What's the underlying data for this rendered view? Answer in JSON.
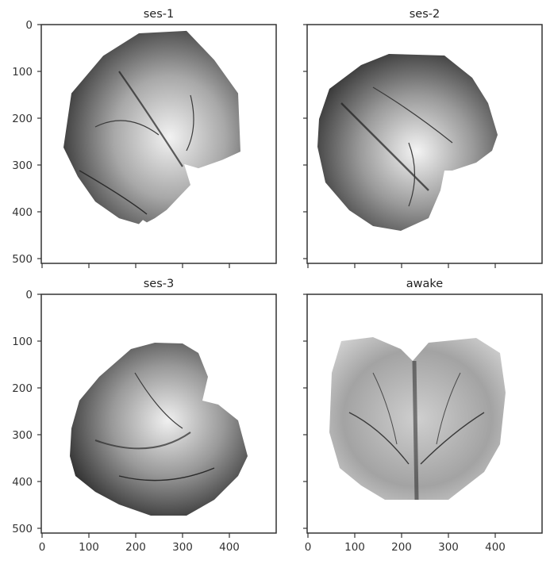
{
  "panels": [
    {
      "title": "ses-1",
      "show_y_tick_labels": true,
      "show_x_tick_labels": false,
      "image_tone": "dark"
    },
    {
      "title": "ses-2",
      "show_y_tick_labels": false,
      "show_x_tick_labels": false,
      "image_tone": "dark"
    },
    {
      "title": "ses-3",
      "show_y_tick_labels": true,
      "show_x_tick_labels": true,
      "image_tone": "dark"
    },
    {
      "title": "awake",
      "show_y_tick_labels": false,
      "show_x_tick_labels": true,
      "image_tone": "light"
    }
  ],
  "axes": {
    "y_ticks": [
      "0",
      "100",
      "200",
      "300",
      "400",
      "500"
    ],
    "x_ticks": [
      "0",
      "100",
      "200",
      "300",
      "400"
    ],
    "y_range": [
      0,
      512
    ],
    "x_range": [
      0,
      500
    ],
    "y_inverted": true
  },
  "colors": {
    "background": "#ffffff",
    "axis": "#333333",
    "image_dark": "#2a2a2a",
    "image_mid": "#8a8a8a",
    "image_light": "#e8e8e8"
  }
}
